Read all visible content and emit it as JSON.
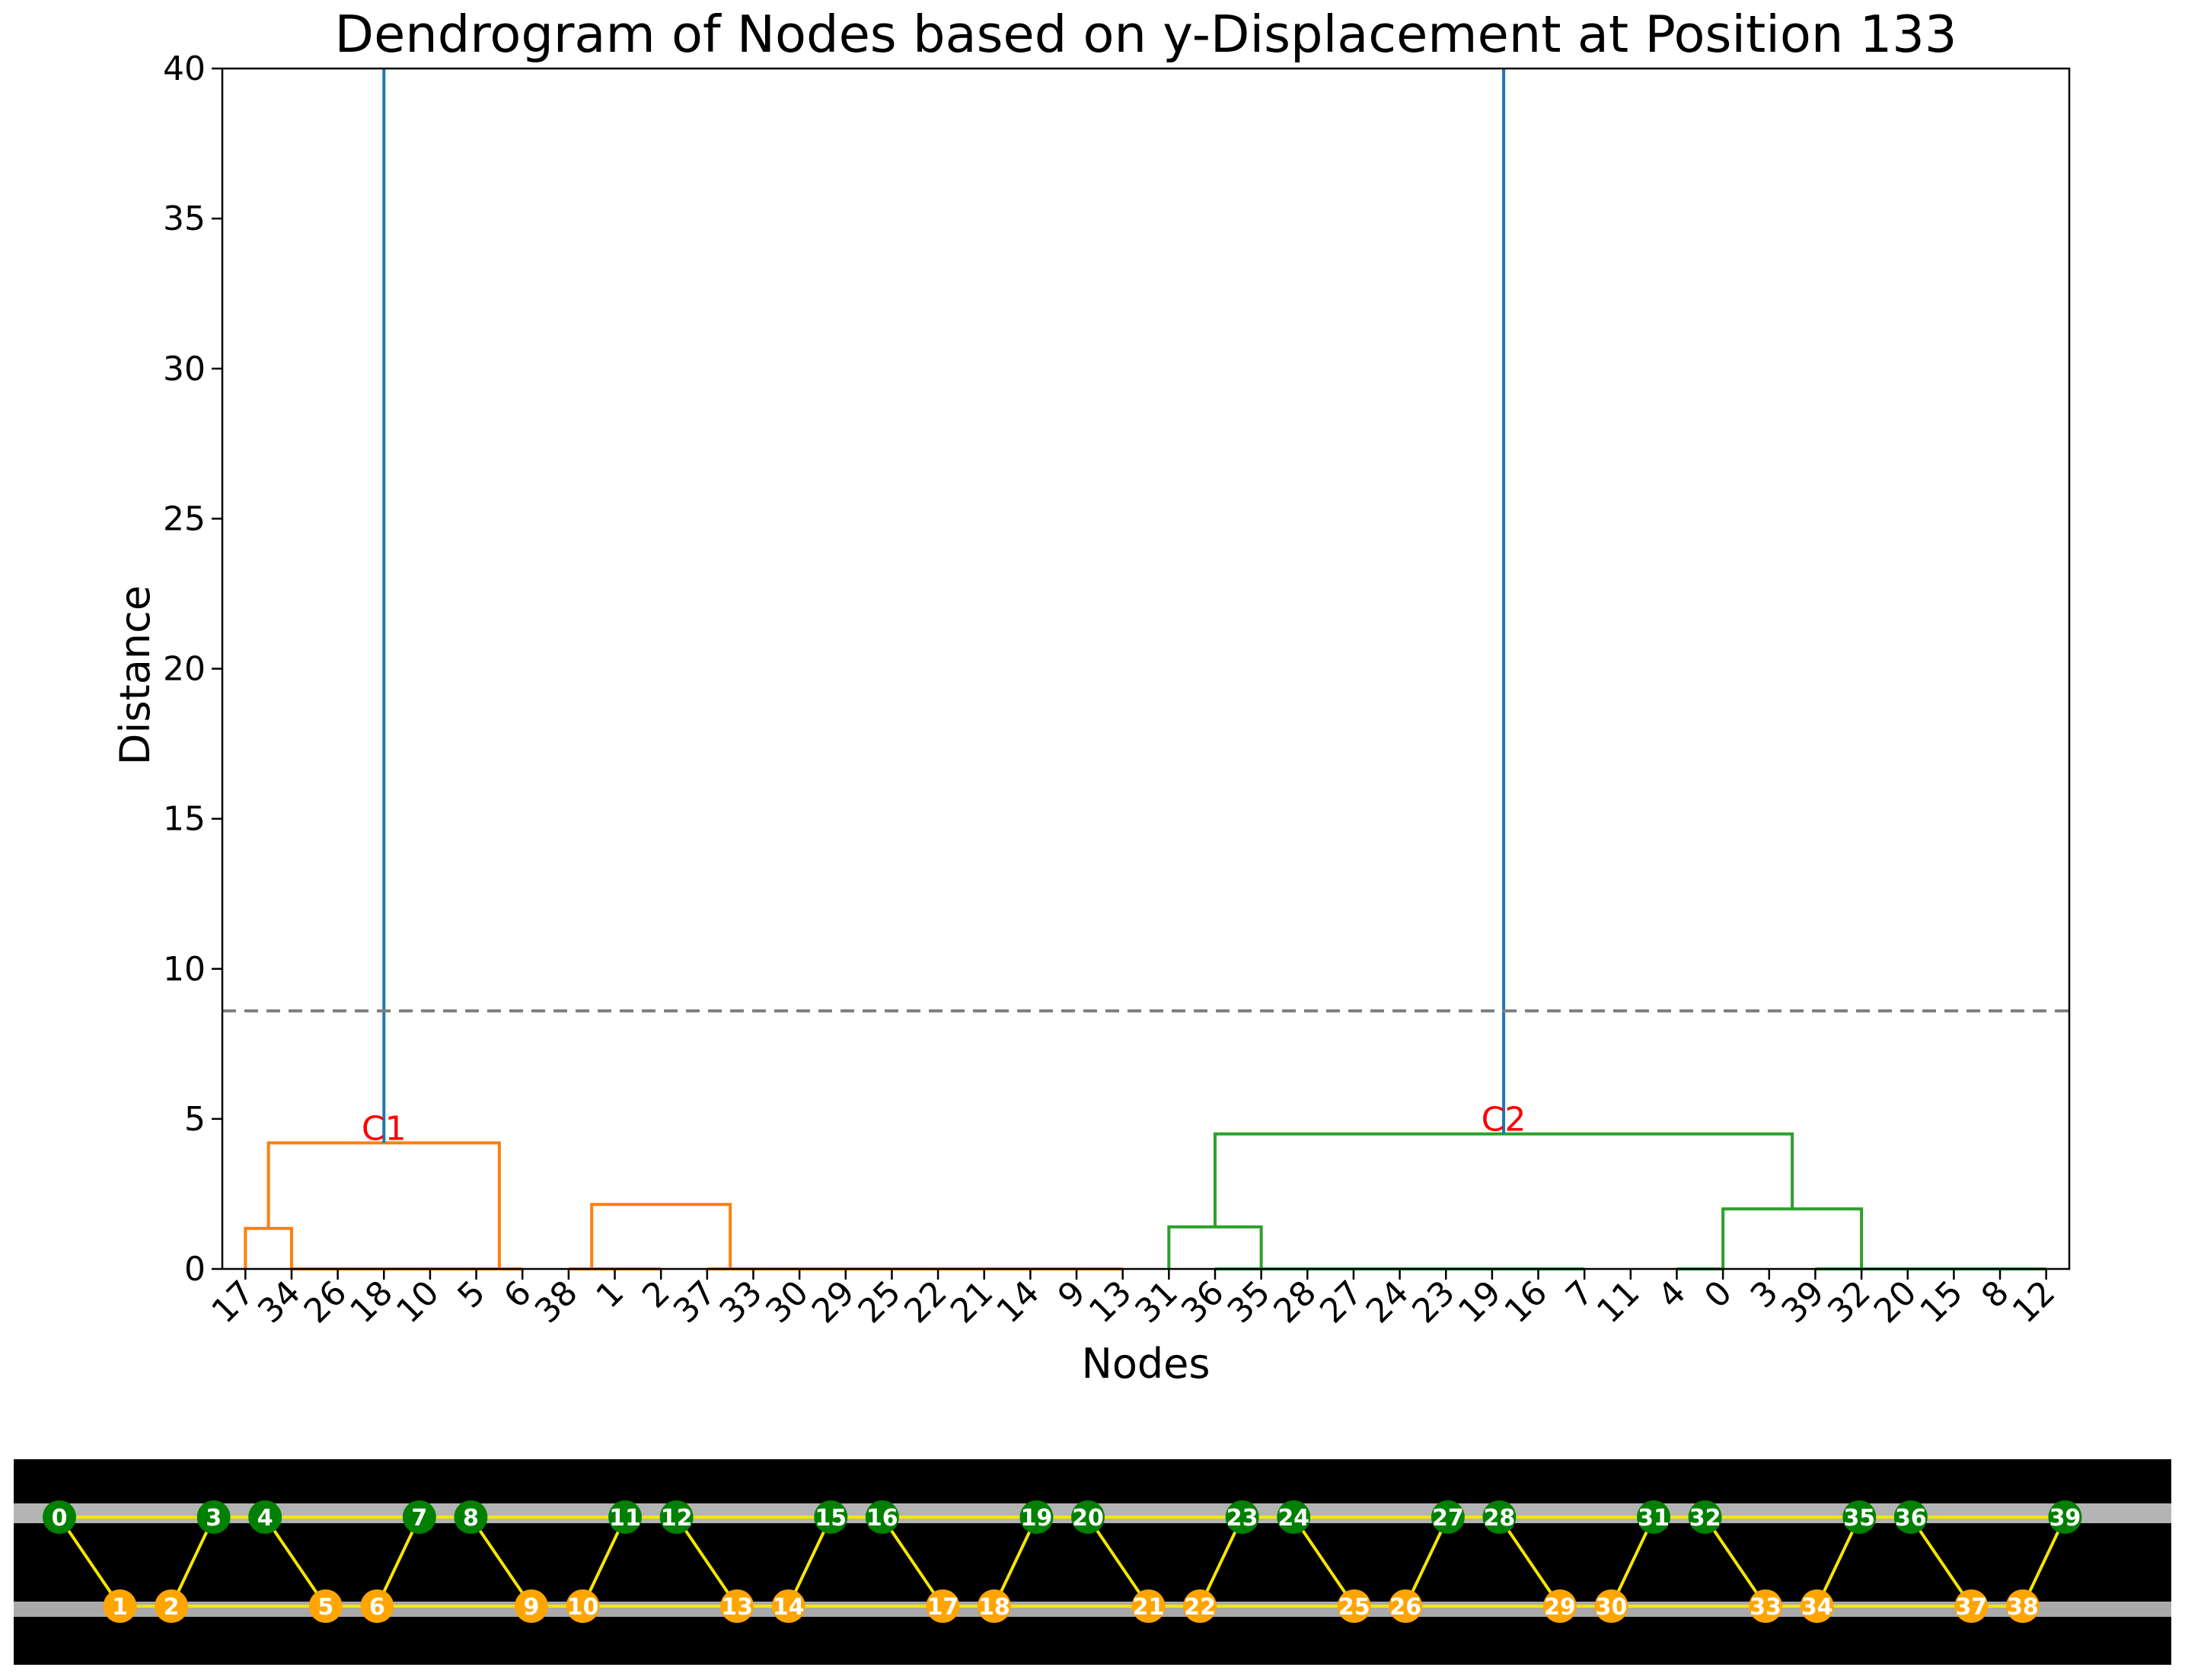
{
  "chart_data": [
    {
      "type": "dendrogram",
      "title": "Dendrogram of Nodes based on y-Displacement at Position 133",
      "xlabel": "Nodes",
      "ylabel": "Distance",
      "ylim": [
        0,
        40
      ],
      "yticks": [
        0,
        5,
        10,
        15,
        20,
        25,
        30,
        35,
        40
      ],
      "grid": false,
      "leaf_order": [
        "17",
        "34",
        "26",
        "18",
        "10",
        "5",
        "6",
        "38",
        "1",
        "2",
        "37",
        "33",
        "30",
        "29",
        "25",
        "22",
        "21",
        "14",
        "9",
        "13",
        "31",
        "36",
        "35",
        "28",
        "27",
        "24",
        "23",
        "19",
        "16",
        "7",
        "11",
        "4",
        "0",
        "3",
        "39",
        "32",
        "20",
        "15",
        "8",
        "12"
      ],
      "cut_threshold": 8.6,
      "colors": {
        "cluster1": "#ff7f0e",
        "cluster2": "#2ca02c",
        "root": "#1f77b4",
        "threshold": "#808080",
        "cluster_label": "#ff0000"
      },
      "clusters": [
        {
          "label": "C1",
          "color": "#ff7f0e",
          "height": 4.2
        },
        {
          "label": "C2",
          "color": "#2ca02c",
          "height": 4.5
        }
      ],
      "links": [
        {
          "left": 0,
          "right": 1,
          "height": 1.35,
          "color": "#ff7f0e"
        },
        {
          "left": 0.5,
          "right": 5.5,
          "height": 4.2,
          "color": "#ff7f0e"
        },
        {
          "left": 7.5,
          "right": 10.5,
          "height": 2.15,
          "color": "#ff7f0e"
        },
        {
          "left": 20,
          "right": 22,
          "height": 1.4,
          "color": "#2ca02c"
        },
        {
          "left": 32,
          "right": 35,
          "height": 2.0,
          "color": "#2ca02c"
        },
        {
          "left": 21,
          "right": 33.5,
          "height": 4.5,
          "color": "#2ca02c"
        }
      ],
      "flat_groups": [
        {
          "from": 1,
          "to": 6,
          "color": "#ff7f0e"
        },
        {
          "from": 7,
          "to": 9,
          "color": "#ff7f0e"
        },
        {
          "from": 10,
          "to": 19,
          "color": "#ff7f0e"
        },
        {
          "from": 21,
          "to": 29,
          "color": "#2ca02c"
        },
        {
          "from": 31,
          "to": 32,
          "color": "#2ca02c"
        },
        {
          "from": 34,
          "to": 39,
          "color": "#2ca02c"
        }
      ]
    },
    {
      "type": "node-map",
      "background_color": "#000000",
      "edge_color": "#f5e600",
      "cluster_colors": {
        "C1": "#ffa500",
        "C2": "#008000"
      },
      "top_nodes": [
        0,
        3,
        4,
        7,
        8,
        11,
        12,
        15,
        16,
        19,
        20,
        23,
        24,
        27,
        28,
        31,
        32,
        35,
        36,
        39
      ],
      "bottom_nodes": [
        1,
        2,
        5,
        6,
        9,
        10,
        13,
        14,
        17,
        18,
        21,
        22,
        25,
        26,
        29,
        30,
        33,
        34,
        37,
        38
      ]
    }
  ]
}
